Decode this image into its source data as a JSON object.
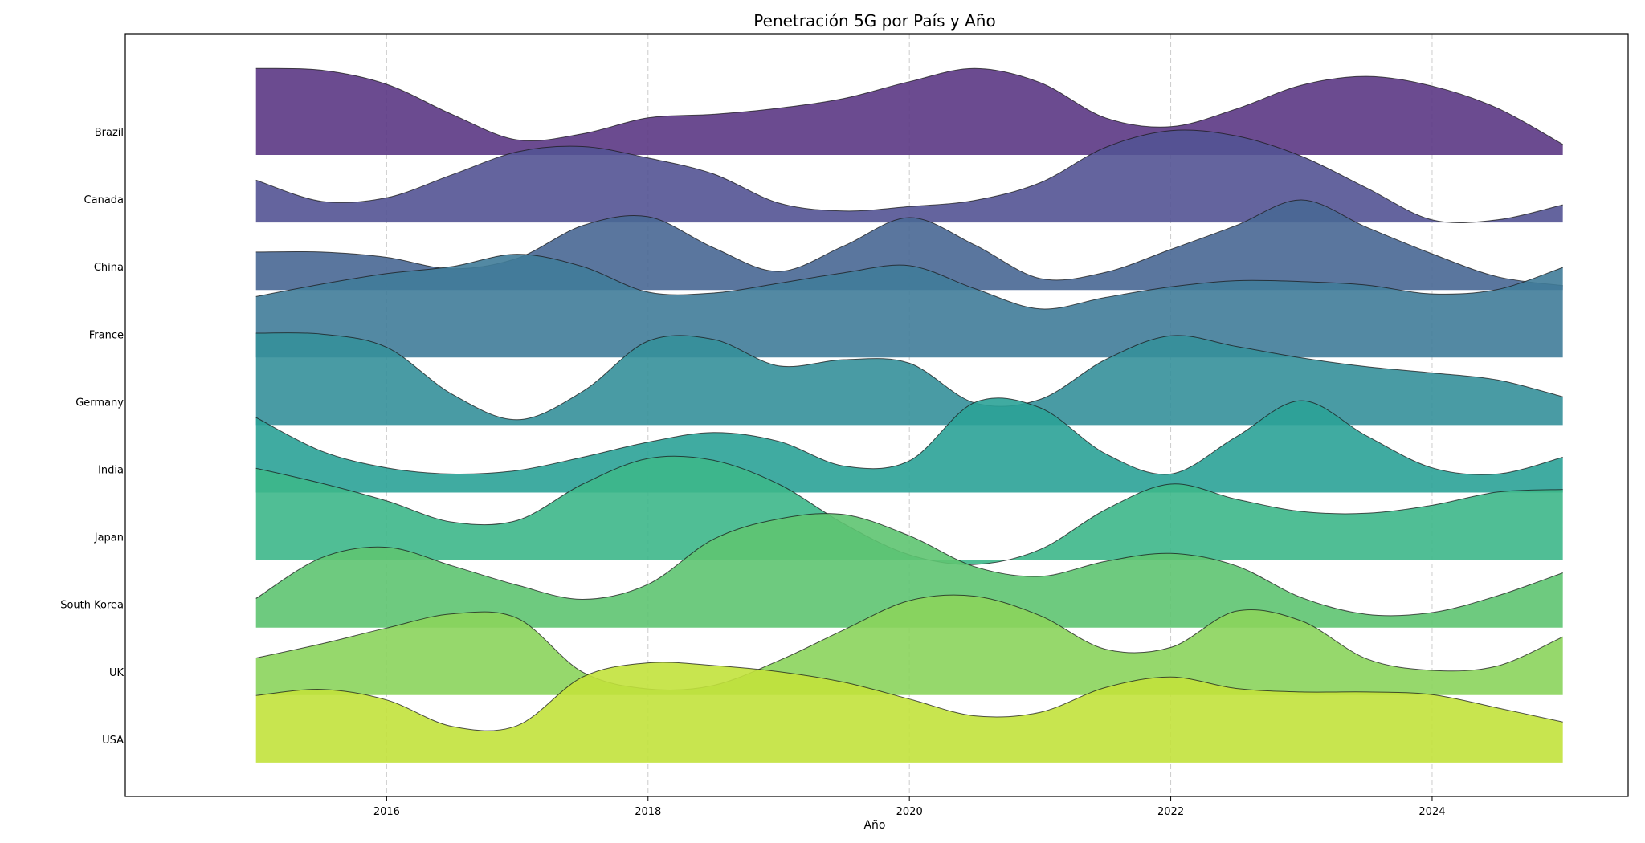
{
  "chart_data": {
    "type": "area",
    "subtype": "ridgeline",
    "title": "Penetración 5G por País y Año",
    "xlabel": "Año",
    "ylabel": "",
    "xlim": [
      2014.0,
      2025.5
    ],
    "x_ticks": [
      2016,
      2018,
      2020,
      2022,
      2024
    ],
    "grid": {
      "x": true,
      "y": false,
      "style": "dashed"
    },
    "legend": "none",
    "colormap": "viridis",
    "x": [
      2015,
      2015.5,
      2016,
      2016.5,
      2017,
      2017.5,
      2018,
      2018.5,
      2019,
      2019.5,
      2020,
      2020.5,
      2021,
      2021.5,
      2022,
      2022.5,
      2023,
      2023.5,
      2024,
      2024.5,
      2025
    ],
    "series": [
      {
        "name": "Brazil",
        "color": "#5b3784",
        "values": [
          0.98,
          0.96,
          0.8,
          0.46,
          0.17,
          0.24,
          0.42,
          0.46,
          0.53,
          0.64,
          0.83,
          0.98,
          0.82,
          0.42,
          0.32,
          0.52,
          0.79,
          0.89,
          0.78,
          0.53,
          0.12
        ]
      },
      {
        "name": "Canada",
        "color": "#535393",
        "values": [
          0.48,
          0.24,
          0.28,
          0.54,
          0.8,
          0.86,
          0.73,
          0.55,
          0.22,
          0.13,
          0.18,
          0.25,
          0.45,
          0.85,
          1.04,
          0.98,
          0.75,
          0.39,
          0.03,
          0.03,
          0.2
        ]
      },
      {
        "name": "China",
        "color": "#486793",
        "values": [
          0.43,
          0.43,
          0.37,
          0.24,
          0.36,
          0.73,
          0.83,
          0.48,
          0.21,
          0.5,
          0.82,
          0.51,
          0.13,
          0.2,
          0.46,
          0.73,
          1.02,
          0.71,
          0.41,
          0.15,
          0.05
        ]
      },
      {
        "name": "France",
        "color": "#407c99",
        "values": [
          0.69,
          0.83,
          0.95,
          1.03,
          1.17,
          1.03,
          0.74,
          0.73,
          0.84,
          0.96,
          1.04,
          0.78,
          0.55,
          0.68,
          0.8,
          0.87,
          0.86,
          0.82,
          0.72,
          0.77,
          1.02
        ]
      },
      {
        "name": "Germany",
        "color": "#35909a",
        "values": [
          1.04,
          1.03,
          0.88,
          0.35,
          0.06,
          0.38,
          0.95,
          0.97,
          0.67,
          0.74,
          0.7,
          0.25,
          0.29,
          0.74,
          1.01,
          0.89,
          0.76,
          0.66,
          0.59,
          0.51,
          0.32
        ]
      },
      {
        "name": "India",
        "color": "#2ba297",
        "values": [
          0.85,
          0.47,
          0.28,
          0.21,
          0.25,
          0.4,
          0.57,
          0.68,
          0.58,
          0.3,
          0.36,
          1.02,
          0.96,
          0.44,
          0.21,
          0.63,
          1.04,
          0.64,
          0.28,
          0.21,
          0.4
        ]
      },
      {
        "name": "Japan",
        "color": "#3db78a",
        "values": [
          1.04,
          0.87,
          0.67,
          0.43,
          0.45,
          0.86,
          1.15,
          1.13,
          0.86,
          0.41,
          0.06,
          -0.05,
          0.12,
          0.57,
          0.86,
          0.69,
          0.55,
          0.53,
          0.62,
          0.77,
          0.8
        ]
      },
      {
        "name": "South Korea",
        "color": "#5ec471",
        "values": [
          0.33,
          0.79,
          0.91,
          0.7,
          0.48,
          0.32,
          0.49,
          1.0,
          1.23,
          1.28,
          1.04,
          0.69,
          0.58,
          0.75,
          0.84,
          0.7,
          0.34,
          0.15,
          0.17,
          0.36,
          0.62
        ]
      },
      {
        "name": "UK",
        "color": "#8bd45c",
        "values": [
          0.42,
          0.58,
          0.76,
          0.92,
          0.87,
          0.26,
          0.07,
          0.11,
          0.39,
          0.74,
          1.07,
          1.12,
          0.9,
          0.52,
          0.54,
          0.95,
          0.84,
          0.41,
          0.28,
          0.33,
          0.66
        ]
      },
      {
        "name": "USA",
        "color": "#c2e23c",
        "values": [
          0.76,
          0.83,
          0.71,
          0.41,
          0.42,
          0.97,
          1.13,
          1.1,
          1.03,
          0.91,
          0.72,
          0.53,
          0.57,
          0.85,
          0.97,
          0.84,
          0.8,
          0.8,
          0.77,
          0.62,
          0.46
        ]
      }
    ]
  }
}
